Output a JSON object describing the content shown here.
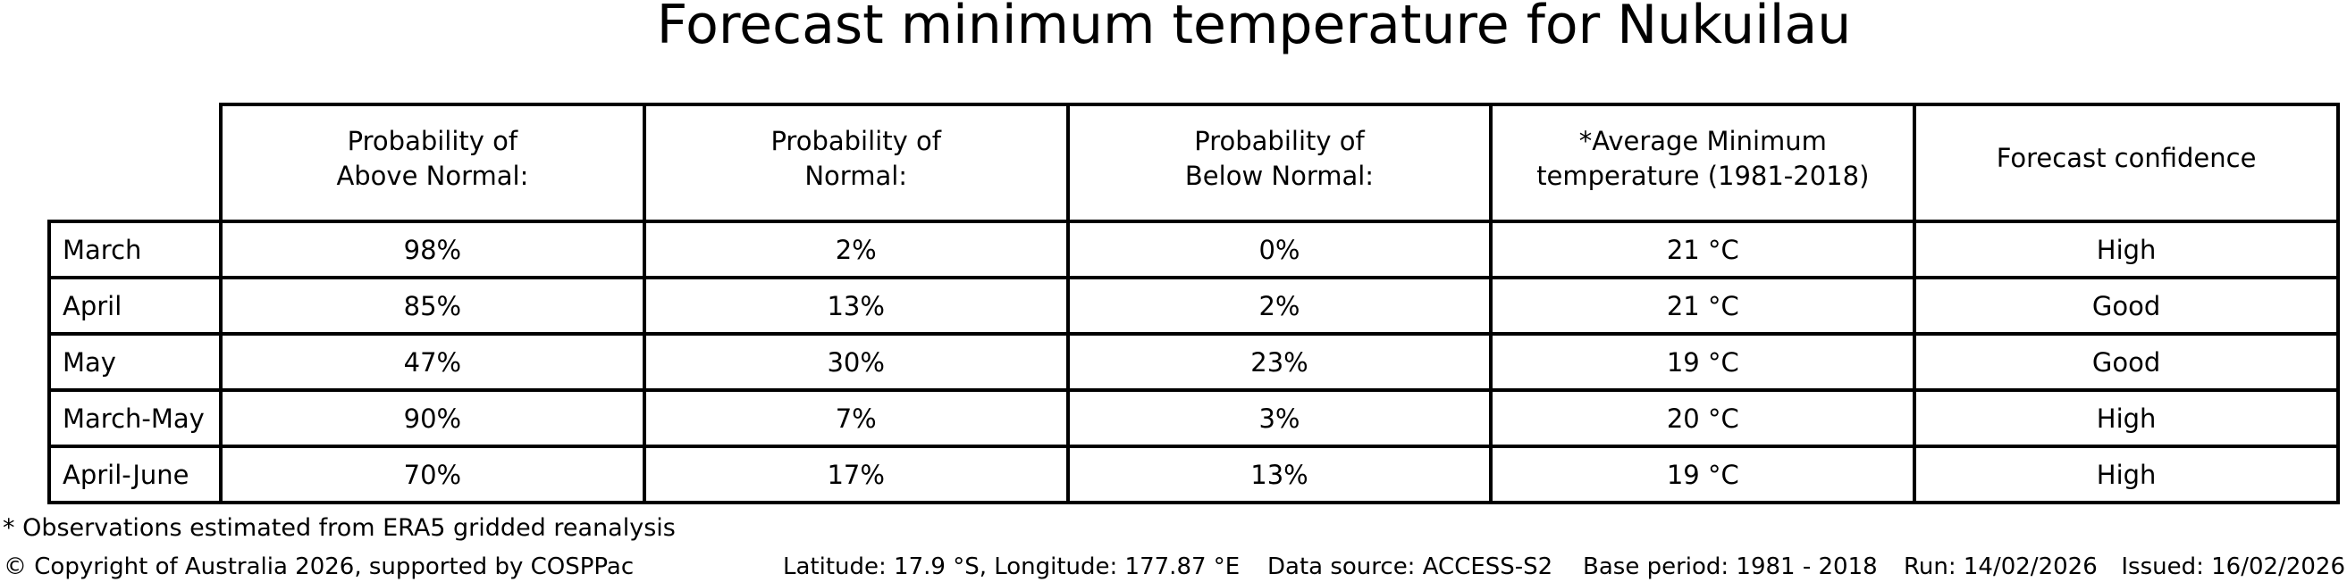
{
  "title": "Forecast minimum temperature for Nukuilau",
  "colors": {
    "background": "#ffffff",
    "text": "#000000",
    "border": "#000000"
  },
  "table": {
    "columns": [
      {
        "line1": "Probability of",
        "line2": "Above Normal:"
      },
      {
        "line1": "Probability of",
        "line2": "Normal:"
      },
      {
        "line1": "Probability of",
        "line2": "Below Normal:"
      },
      {
        "line1": "*Average Minimum",
        "line2": "temperature (1981-2018)"
      },
      {
        "line1": "Forecast confidence",
        "line2": ""
      }
    ],
    "rows": [
      {
        "label": "March",
        "above": "98%",
        "normal": "2%",
        "below": "0%",
        "avg_min": "21 °C",
        "confidence": "High"
      },
      {
        "label": "April",
        "above": "85%",
        "normal": "13%",
        "below": "2%",
        "avg_min": "21 °C",
        "confidence": "Good"
      },
      {
        "label": "May",
        "above": "47%",
        "normal": "30%",
        "below": "23%",
        "avg_min": "19 °C",
        "confidence": "Good"
      },
      {
        "label": "March-May",
        "above": "90%",
        "normal": "7%",
        "below": "3%",
        "avg_min": "20 °C",
        "confidence": "High"
      },
      {
        "label": "April-June",
        "above": "70%",
        "normal": "17%",
        "below": "13%",
        "avg_min": "19 °C",
        "confidence": "High"
      }
    ]
  },
  "footnote": "* Observations estimated from ERA5 gridded reanalysis",
  "footer": {
    "copyright": "© Copyright of Australia 2026, supported by COSPPac",
    "location": "Latitude: 17.9 °S, Longitude: 177.87 °E",
    "data_source": "Data source: ACCESS-S2",
    "base_period": "Base period: 1981 - 2018",
    "run": "Run: 14/02/2026",
    "issued": "Issued: 16/02/2026"
  },
  "chart_data": {
    "type": "table",
    "title": "Forecast minimum temperature for Nukuilau",
    "row_labels": [
      "March",
      "April",
      "May",
      "March-May",
      "April-June"
    ],
    "columns": [
      "Probability of Above Normal:",
      "Probability of Normal:",
      "Probability of Below Normal:",
      "*Average Minimum temperature (1981-2018)",
      "Forecast confidence"
    ],
    "series": [
      {
        "name": "Probability of Above Normal:",
        "values": [
          "98%",
          "85%",
          "47%",
          "90%",
          "70%"
        ]
      },
      {
        "name": "Probability of Normal:",
        "values": [
          "2%",
          "13%",
          "30%",
          "7%",
          "17%"
        ]
      },
      {
        "name": "Probability of Below Normal:",
        "values": [
          "0%",
          "2%",
          "23%",
          "3%",
          "13%"
        ]
      },
      {
        "name": "*Average Minimum temperature (1981-2018)",
        "values": [
          "21 °C",
          "21 °C",
          "19 °C",
          "20 °C",
          "19 °C"
        ]
      },
      {
        "name": "Forecast confidence",
        "values": [
          "High",
          "Good",
          "Good",
          "High",
          "High"
        ]
      }
    ]
  }
}
